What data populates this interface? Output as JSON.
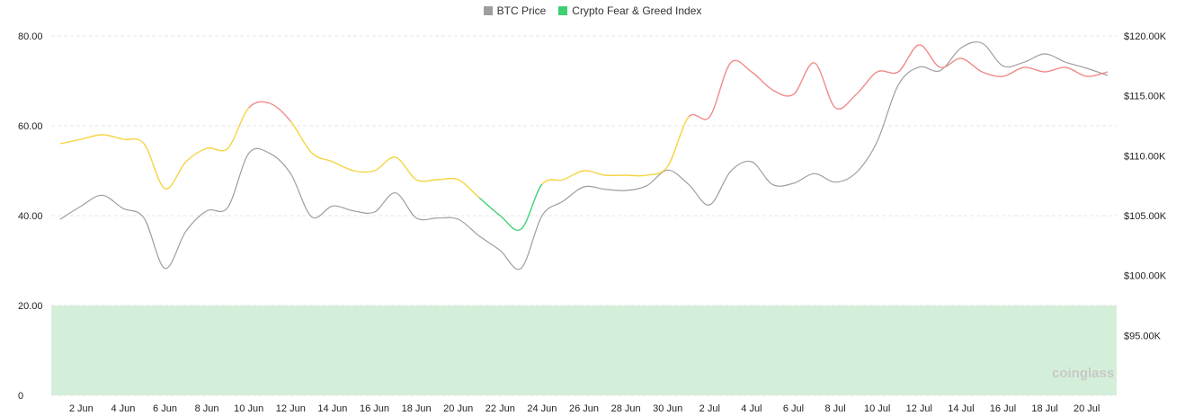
{
  "legend": [
    {
      "label": "BTC Price",
      "color": "#9e9e9e"
    },
    {
      "label": "Crypto Fear & Greed Index",
      "color": "#3ecf73"
    }
  ],
  "watermark": "coinglass",
  "chart_data": {
    "type": "line",
    "legend_position": "top-center",
    "grid": true,
    "x_tick_labels": [
      "2 Jun",
      "4 Jun",
      "6 Jun",
      "8 Jun",
      "10 Jun",
      "12 Jun",
      "14 Jun",
      "16 Jun",
      "18 Jun",
      "20 Jun",
      "22 Jun",
      "24 Jun",
      "26 Jun",
      "28 Jun",
      "30 Jun",
      "2 Jul",
      "4 Jul",
      "6 Jul",
      "8 Jul",
      "10 Jul",
      "12 Jul",
      "14 Jul",
      "16 Jul",
      "18 Jul",
      "20 Jul"
    ],
    "left_axis": {
      "ticks": [
        "0",
        "20.00",
        "40.00",
        "60.00",
        "80.00"
      ],
      "range": [
        0,
        80
      ]
    },
    "right_axis": {
      "ticks": [
        "$95.00K",
        "$100.00K",
        "$105.00K",
        "$110.00K",
        "$115.00K",
        "$120.00K"
      ],
      "range": [
        90000,
        120000
      ]
    },
    "zones": [
      {
        "from": 0,
        "to": 20,
        "color": "#d4efd9"
      }
    ],
    "series": [
      {
        "name": "BTC Price",
        "axis": "right",
        "color": "#9e9e9e",
        "x": [
          "1 Jun",
          "2 Jun",
          "3 Jun",
          "4 Jun",
          "5 Jun",
          "6 Jun",
          "7 Jun",
          "8 Jun",
          "9 Jun",
          "10 Jun",
          "11 Jun",
          "12 Jun",
          "13 Jun",
          "14 Jun",
          "15 Jun",
          "16 Jun",
          "17 Jun",
          "18 Jun",
          "19 Jun",
          "20 Jun",
          "21 Jun",
          "22 Jun",
          "23 Jun",
          "24 Jun",
          "25 Jun",
          "26 Jun",
          "27 Jun",
          "28 Jun",
          "29 Jun",
          "30 Jun",
          "1 Jul",
          "2 Jul",
          "3 Jul",
          "4 Jul",
          "5 Jul",
          "6 Jul",
          "7 Jul",
          "8 Jul",
          "9 Jul",
          "10 Jul",
          "11 Jul",
          "12 Jul",
          "13 Jul",
          "14 Jul",
          "15 Jul",
          "16 Jul",
          "17 Jul",
          "18 Jul",
          "19 Jul",
          "20 Jul",
          "21 Jul"
        ],
        "values": [
          104700,
          105800,
          106700,
          105600,
          104800,
          100600,
          103700,
          105400,
          105700,
          110200,
          110200,
          108500,
          104900,
          105800,
          105400,
          105300,
          106900,
          104800,
          104800,
          104700,
          103300,
          102100,
          100600,
          105000,
          106200,
          107400,
          107200,
          107100,
          107500,
          108800,
          107600,
          105900,
          108700,
          109500,
          107600,
          107700,
          108500,
          107800,
          108600,
          111200,
          115900,
          117400,
          117100,
          119000,
          119400,
          117500,
          117800,
          118500,
          117800,
          117300,
          116700
        ]
      },
      {
        "name": "Crypto Fear & Greed Index",
        "axis": "left",
        "color_by_value": [
          {
            "min": 0,
            "max": 45,
            "color": "#3ecf73"
          },
          {
            "min": 45,
            "max": 60,
            "color": "#f5d442"
          },
          {
            "min": 60,
            "max": 100,
            "color": "#f08a8a"
          }
        ],
        "x": [
          "1 Jun",
          "2 Jun",
          "3 Jun",
          "4 Jun",
          "5 Jun",
          "6 Jun",
          "7 Jun",
          "8 Jun",
          "9 Jun",
          "10 Jun",
          "11 Jun",
          "12 Jun",
          "13 Jun",
          "14 Jun",
          "15 Jun",
          "16 Jun",
          "17 Jun",
          "18 Jun",
          "19 Jun",
          "20 Jun",
          "21 Jun",
          "22 Jun",
          "23 Jun",
          "24 Jun",
          "25 Jun",
          "26 Jun",
          "27 Jun",
          "28 Jun",
          "29 Jun",
          "30 Jun",
          "1 Jul",
          "2 Jul",
          "3 Jul",
          "4 Jul",
          "5 Jul",
          "6 Jul",
          "7 Jul",
          "8 Jul",
          "9 Jul",
          "10 Jul",
          "11 Jul",
          "12 Jul",
          "13 Jul",
          "14 Jul",
          "15 Jul",
          "16 Jul",
          "17 Jul",
          "18 Jul",
          "19 Jul",
          "20 Jul",
          "21 Jul"
        ],
        "values": [
          56,
          57,
          58,
          57,
          56,
          46,
          52,
          55,
          55,
          64,
          65,
          61,
          54,
          52,
          50,
          50,
          53,
          48,
          48,
          48,
          44,
          40,
          37,
          47,
          48,
          50,
          49,
          49,
          49,
          51,
          62,
          62,
          74,
          72,
          68,
          67,
          74,
          64,
          67,
          72,
          72,
          78,
          73,
          75,
          72,
          71,
          73,
          72,
          73,
          71,
          72
        ]
      }
    ]
  }
}
